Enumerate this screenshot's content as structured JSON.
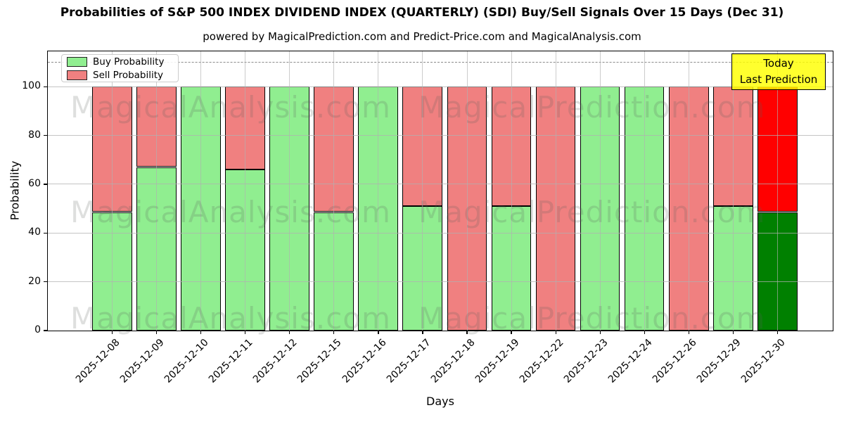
{
  "title": "Probabilities of S&P 500 INDEX DIVIDEND INDEX (QUARTERLY) (SDI) Buy/Sell Signals Over 15 Days (Dec 31)",
  "subtitle": "powered by MagicalPrediction.com and Predict-Price.com and MagicalAnalysis.com",
  "legend": {
    "items": [
      {
        "label": "Buy Probability",
        "color": "#90EE90"
      },
      {
        "label": "Sell Probability",
        "color": "#F08080"
      }
    ]
  },
  "annotation_box": {
    "lines": [
      "Today",
      "Last Prediction"
    ],
    "bg_color": "#FFFF00"
  },
  "watermarks": [
    "MagicalAnalysis.com",
    "MagicalPrediction.com"
  ],
  "chart_data": {
    "type": "bar",
    "stacked": true,
    "title": "Probabilities of S&P 500 INDEX DIVIDEND INDEX (QUARTERLY) (SDI) Buy/Sell Signals Over 15 Days (Dec 31)",
    "xlabel": "Days",
    "ylabel": "Probability",
    "categories": [
      "2025-12-08",
      "2025-12-09",
      "2025-12-10",
      "2025-12-11",
      "2025-12-12",
      "2025-12-15",
      "2025-12-16",
      "2025-12-17",
      "2025-12-18",
      "2025-12-19",
      "2025-12-22",
      "2025-12-23",
      "2025-12-24",
      "2025-12-26",
      "2025-12-29",
      "2025-12-30"
    ],
    "series": [
      {
        "name": "Buy Probability",
        "color": "#90EE90",
        "today_color": "#008000",
        "values": [
          48.5,
          67,
          100,
          66,
          100,
          48.5,
          100,
          51,
          0,
          51,
          0,
          100,
          100,
          0,
          51,
          48.5
        ]
      },
      {
        "name": "Sell Probability",
        "color": "#F08080",
        "today_color": "#FF0000",
        "values": [
          51.5,
          33,
          0,
          34,
          0,
          51.5,
          0,
          49,
          100,
          49,
          100,
          0,
          0,
          100,
          49,
          51.5
        ]
      }
    ],
    "today_index": 15,
    "yticks": [
      0,
      20,
      40,
      60,
      80,
      100
    ],
    "ylim": [
      0,
      114.5
    ],
    "dashed_line_y": 110,
    "grid": true,
    "grid_color": "#b0b0b0",
    "bar_edge_color": "#000000",
    "legend_position": "upper left"
  }
}
